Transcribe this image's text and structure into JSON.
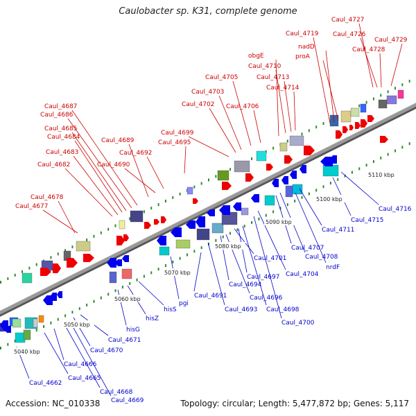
{
  "title": "Caulobacter sp. K31, complete genome",
  "footer": {
    "accession": "Accession: NC_010338",
    "topology": "Topology: circular; Length: 5,477,872 bp; Genes: 5,117"
  },
  "colors": {
    "forward_label": "#cc0000",
    "reverse_label": "#0000cc",
    "forward_arrow": "#ee0000",
    "reverse_arrow": "#0000ee",
    "backbone": "#9a9a9a",
    "tick": "#2f8a2f"
  },
  "scale_labels": [
    "5040 kbp",
    "5050 kbp",
    "5060 kbp",
    "5070 kbp",
    "5080 kbp",
    "5090 kbp",
    "5100 kbp",
    "5110 kbp"
  ],
  "forward_genes": [
    "Caul_4677",
    "Caul_4678",
    "Caul_4682",
    "Caul_4683",
    "Caul_4684",
    "Caul_4685",
    "Caul_4686",
    "Caul_4687",
    "Caul_4689",
    "Caul_4690",
    "Caul_4692",
    "Caul_4695",
    "Caul_4699",
    "Caul_4702",
    "Caul_4703",
    "Caul_4705",
    "Caul_4706",
    "obgE",
    "Caul_4710",
    "Caul_4713",
    "Caul_4714",
    "Caul_4719",
    "nadD",
    "proA",
    "Caul_4727",
    "Caul_4726",
    "Caul_4728",
    "Caul_4729"
  ],
  "reverse_genes": [
    "Caul_4662",
    "Caul_4665",
    "Caul_4666",
    "Caul_4668",
    "Caul_4669",
    "Caul_4670",
    "Caul_4671",
    "hisG",
    "hisZ",
    "hisS",
    "pgi",
    "Caul_4691",
    "Caul_4693",
    "Caul_4694",
    "Caul_4696",
    "Caul_4697",
    "Caul_4698",
    "Caul_4700",
    "Caul_4701",
    "Caul_4704",
    "Caul_4707",
    "Caul_4708",
    "nrdF",
    "Caul_4711",
    "Caul_4715",
    "Caul_4716"
  ]
}
